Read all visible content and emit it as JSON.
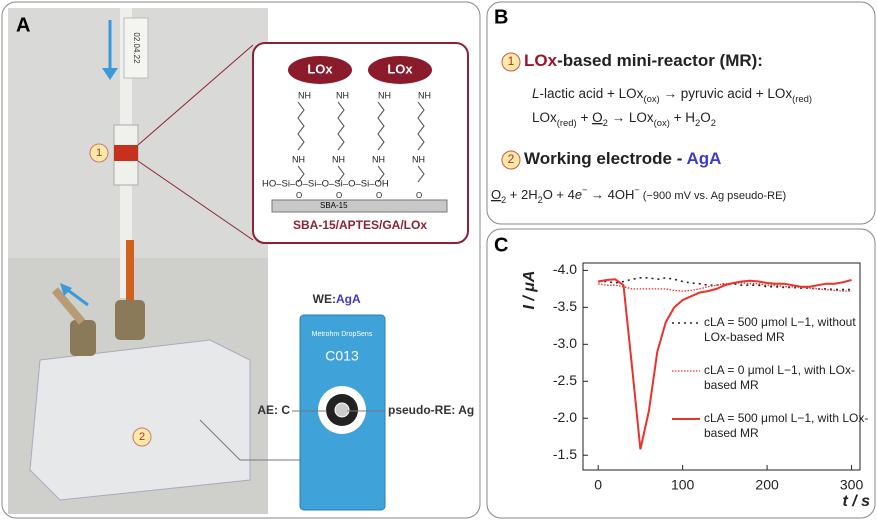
{
  "panel_a": {
    "label": "A",
    "markers": [
      "1",
      "2"
    ],
    "tube_tag": "02.04.22",
    "structure": {
      "enzymes": [
        "LOx",
        "LOx"
      ],
      "amines": [
        "NH",
        "NH",
        "NH",
        "NH",
        "NH",
        "NH",
        "NH",
        "NH"
      ],
      "siloxane": "HO–Si–O–Si–O–Si–O–Si–OH",
      "oxygens": [
        "O",
        "O",
        "O",
        "O"
      ],
      "support": "SBA-15",
      "caption": "SBA-15/APTES/GA/LOx"
    },
    "sensor": {
      "we_prefix": "WE: ",
      "we_name": "AgA",
      "brand": "Metrohm DropSens",
      "model": "C013",
      "ae": "AE: C",
      "re": "pseudo-RE: Ag"
    }
  },
  "panel_b": {
    "label": "B",
    "heading1": {
      "marker": "1",
      "parts": [
        {
          "text": "LOx",
          "style": "red"
        },
        {
          "text": "-based mini-reactor (MR):",
          "style": "plain"
        }
      ]
    },
    "equations1": [
      [
        {
          "text": "L",
          "style": "italic"
        },
        {
          "text": "-lactic acid + LOx",
          "style": "plain"
        },
        {
          "text": "(ox)",
          "style": "sub"
        },
        {
          "text": " → pyruvic acid + LOx",
          "style": "plain"
        },
        {
          "text": "(red)",
          "style": "sub"
        }
      ],
      [
        {
          "text": "LOx",
          "style": "plain"
        },
        {
          "text": "(red)",
          "style": "sub"
        },
        {
          "text": " + ",
          "style": "plain"
        },
        {
          "text": "O",
          "style": "underline"
        },
        {
          "text": "2",
          "style": "sub"
        },
        {
          "text": " → LOx",
          "style": "plain"
        },
        {
          "text": "(ox)",
          "style": "sub"
        },
        {
          "text": " + H",
          "style": "plain"
        },
        {
          "text": "2",
          "style": "sub"
        },
        {
          "text": "O",
          "style": "plain"
        },
        {
          "text": "2",
          "style": "sub"
        }
      ]
    ],
    "heading2": {
      "marker": "2",
      "parts": [
        {
          "text": "Working electrode - ",
          "style": "plain"
        },
        {
          "text": "AgA",
          "style": "blue"
        }
      ]
    },
    "equations2": [
      [
        {
          "text": "O",
          "style": "underline"
        },
        {
          "text": "2",
          "style": "sub"
        },
        {
          "text": " + 2H",
          "style": "plain"
        },
        {
          "text": "2",
          "style": "sub"
        },
        {
          "text": "O + 4",
          "style": "plain"
        },
        {
          "text": "e",
          "style": "italic"
        },
        {
          "text": "−",
          "style": "sup"
        },
        {
          "text": " → 4OH",
          "style": "plain"
        },
        {
          "text": "−",
          "style": "sup"
        },
        {
          "text": "   (−900 mV vs. Ag pseudo-RE)",
          "style": "small"
        }
      ]
    ]
  },
  "panel_c_label": "C",
  "chart_data": {
    "type": "line",
    "xlabel": "t / s",
    "ylabel": "I / μA",
    "x": [
      0,
      10,
      20,
      30,
      40,
      50,
      60,
      70,
      80,
      90,
      100,
      110,
      120,
      130,
      140,
      150,
      160,
      170,
      180,
      190,
      200,
      210,
      220,
      230,
      240,
      250,
      260,
      270,
      280,
      290,
      300
    ],
    "xlim": [
      -18,
      310
    ],
    "xticks": [
      0,
      100,
      200,
      300
    ],
    "ylim": [
      -1.3,
      -4.1
    ],
    "yticks": [
      {
        "value": -4.0,
        "label": "-4.0"
      },
      {
        "value": -3.5,
        "label": "-3.5"
      },
      {
        "value": -3.0,
        "label": "-3.0"
      },
      {
        "value": -2.5,
        "label": "-2.5"
      },
      {
        "value": -2.0,
        "label": "-2.0"
      },
      {
        "value": -1.5,
        "label": "-1.5"
      }
    ],
    "series": [
      {
        "name": "cLA = 500 μmol L−1, without LOx-based MR",
        "color": "#222222",
        "dash": "2 4",
        "width": 1.6,
        "values": [
          -3.85,
          -3.85,
          -3.83,
          -3.85,
          -3.88,
          -3.9,
          -3.9,
          -3.88,
          -3.9,
          -3.88,
          -3.85,
          -3.83,
          -3.82,
          -3.8,
          -3.8,
          -3.82,
          -3.82,
          -3.8,
          -3.8,
          -3.8,
          -3.78,
          -3.78,
          -3.77,
          -3.77,
          -3.76,
          -3.76,
          -3.75,
          -3.75,
          -3.74,
          -3.74,
          -3.74
        ]
      },
      {
        "name": "cLA = 0 μmol L−1, with LOx-based MR",
        "color": "#e8322c",
        "dash": "1.5 1.5",
        "width": 1.3,
        "values": [
          -3.82,
          -3.8,
          -3.8,
          -3.78,
          -3.75,
          -3.75,
          -3.75,
          -3.75,
          -3.75,
          -3.73,
          -3.72,
          -3.73,
          -3.75,
          -3.78,
          -3.8,
          -3.82,
          -3.83,
          -3.83,
          -3.82,
          -3.82,
          -3.8,
          -3.8,
          -3.78,
          -3.78,
          -3.77,
          -3.76,
          -3.75,
          -3.74,
          -3.73,
          -3.72,
          -3.72
        ]
      },
      {
        "name": "cLA = 500 μmol L−1, with LOx-based MR",
        "color": "#e8322c",
        "dash": "none",
        "width": 2,
        "values": [
          -3.85,
          -3.87,
          -3.88,
          -3.8,
          -2.7,
          -1.58,
          -2.1,
          -2.9,
          -3.3,
          -3.5,
          -3.6,
          -3.65,
          -3.7,
          -3.72,
          -3.75,
          -3.8,
          -3.83,
          -3.85,
          -3.86,
          -3.85,
          -3.83,
          -3.82,
          -3.82,
          -3.8,
          -3.78,
          -3.78,
          -3.8,
          -3.82,
          -3.82,
          -3.84,
          -3.87
        ]
      }
    ]
  }
}
